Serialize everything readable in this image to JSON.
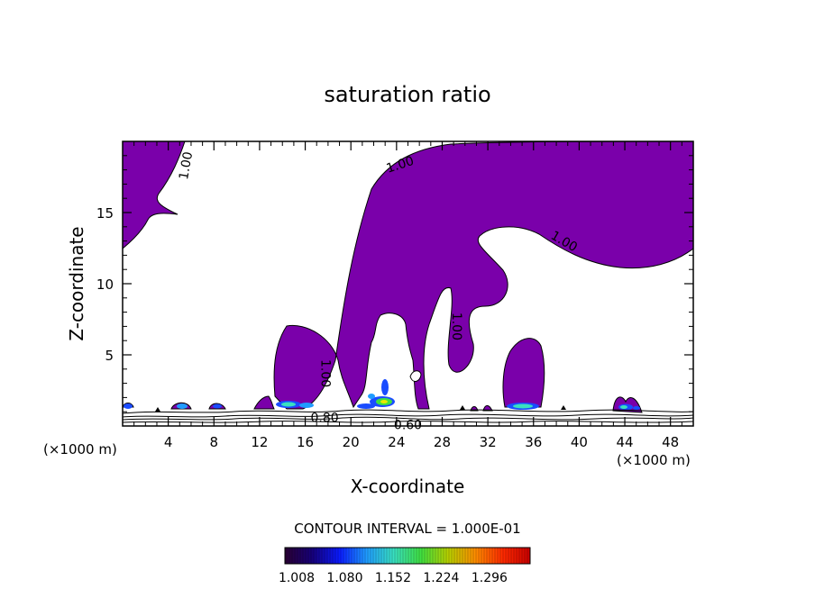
{
  "chart_data": {
    "type": "contour",
    "title": "saturation ratio",
    "xlabel": "X-coordinate",
    "ylabel": "Z-coordinate",
    "x_unit_left": "(×1000 m)",
    "x_unit_right": "(×1000 m)",
    "xlim": [
      0,
      50
    ],
    "ylim": [
      0,
      20
    ],
    "x_ticks": [
      4,
      8,
      12,
      16,
      20,
      24,
      28,
      32,
      36,
      40,
      44,
      48
    ],
    "y_ticks": [
      5,
      10,
      15
    ],
    "contour_labels": [
      {
        "text": "1.00",
        "x": 5.5,
        "y": 18.3,
        "angle": -80
      },
      {
        "text": "1.00",
        "x": 24.3,
        "y": 18.4,
        "angle": -18
      },
      {
        "text": "1.00",
        "x": 38.7,
        "y": 13.0,
        "angle": 30
      },
      {
        "text": "1.00",
        "x": 29.3,
        "y": 7.0,
        "angle": 90
      },
      {
        "text": "1.00",
        "x": 17.8,
        "y": 3.7,
        "angle": 90
      },
      {
        "text": "0.80",
        "x": 17.7,
        "y": 0.6,
        "angle": 0
      },
      {
        "text": "0.60",
        "x": 25.0,
        "y": 0.1,
        "angle": 0
      }
    ],
    "contour_interval_text": "CONTOUR INTERVAL = 1.000E-01",
    "colorbar_ticks": [
      "1.008",
      "1.080",
      "1.152",
      "1.224",
      "1.296"
    ],
    "colorbar_colors": [
      "#2a0033",
      "#16007a",
      "#0a1aff",
      "#1f9cff",
      "#39e0c0",
      "#40e040",
      "#b8d000",
      "#ff8c00",
      "#ff2a00",
      "#c80000"
    ],
    "fill_color": "#7a00aa",
    "grid": false,
    "legend": "none"
  }
}
